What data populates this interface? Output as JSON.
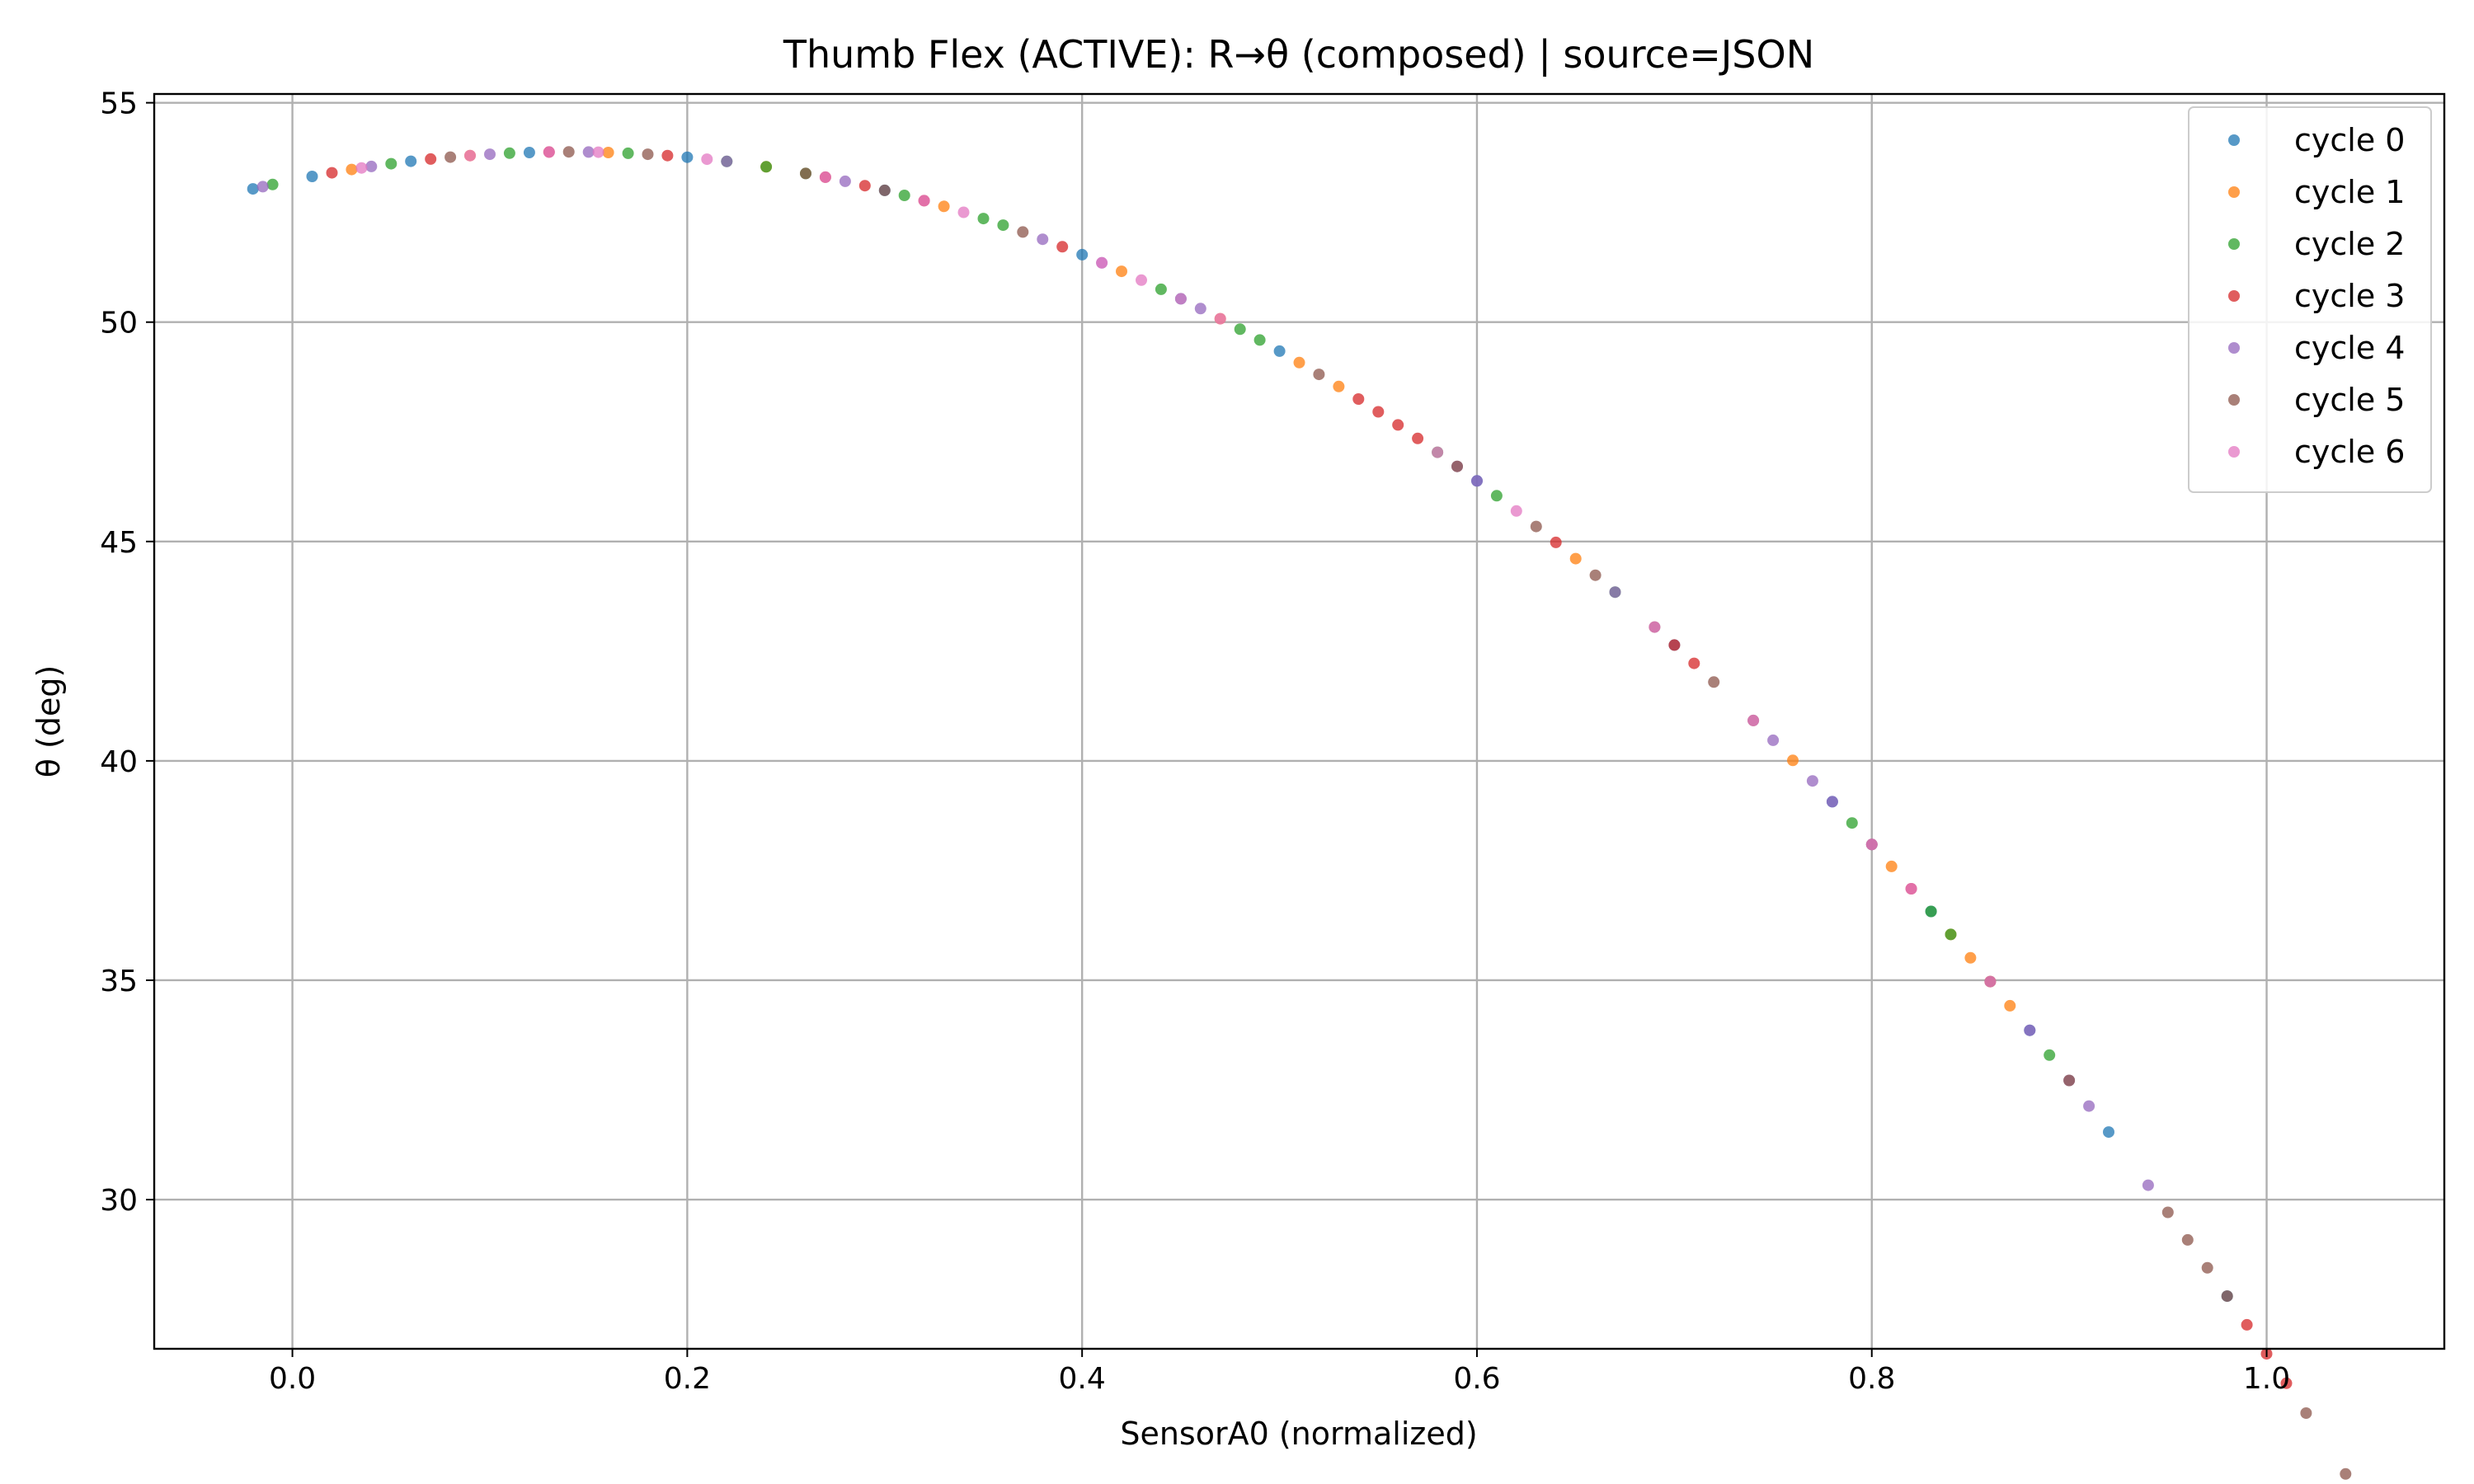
{
  "chart_data": {
    "type": "scatter",
    "title": "Thumb Flex (ACTIVE): R→θ (composed) | source=JSON",
    "xlabel": "SensorA0 (normalized)",
    "ylabel": "θ (deg)",
    "xlim": [
      -0.07,
      1.09
    ],
    "ylim": [
      26.6,
      55.2
    ],
    "xticks": [
      0.0,
      0.2,
      0.4,
      0.6,
      0.8,
      1.0
    ],
    "xtick_labels": [
      "0.0",
      "0.2",
      "0.4",
      "0.6",
      "0.8",
      "1.0"
    ],
    "yticks": [
      30,
      35,
      40,
      45,
      50,
      55
    ],
    "ytick_labels": [
      "30",
      "35",
      "40",
      "45",
      "50",
      "55"
    ],
    "grid": true,
    "legend_position": "top-right",
    "series": [
      {
        "name": "cycle 0",
        "color": "#1f77b4",
        "x": [
          -0.02,
          0.01,
          0.06,
          0.12,
          0.2,
          0.3,
          0.4,
          0.45,
          0.5,
          0.6,
          0.7,
          0.78,
          0.83,
          0.88,
          0.92,
          0.98
        ]
      },
      {
        "name": "cycle 1",
        "color": "#ff7f0e",
        "x": [
          0.03,
          0.09,
          0.16,
          0.24,
          0.33,
          0.42,
          0.47,
          0.51,
          0.53,
          0.65,
          0.76,
          0.81,
          0.84,
          0.85,
          0.86,
          0.87
        ]
      },
      {
        "name": "cycle 2",
        "color": "#2ca02c",
        "x": [
          -0.01,
          0.05,
          0.11,
          0.17,
          0.22,
          0.24,
          0.26,
          0.31,
          0.35,
          0.36,
          0.44,
          0.48,
          0.49,
          0.58,
          0.61,
          0.67,
          0.79,
          0.83,
          0.84,
          0.89
        ]
      },
      {
        "name": "cycle 3",
        "color": "#d62728",
        "x": [
          0.02,
          0.07,
          0.13,
          0.19,
          0.27,
          0.29,
          0.32,
          0.39,
          0.54,
          0.55,
          0.56,
          0.57,
          0.64,
          0.7,
          0.71,
          0.82,
          0.99,
          1.0,
          1.01
        ]
      },
      {
        "name": "cycle 4",
        "color": "#9467bd",
        "x": [
          -0.015,
          0.04,
          0.1,
          0.15,
          0.22,
          0.28,
          0.38,
          0.41,
          0.46,
          0.59,
          0.6,
          0.67,
          0.75,
          0.77,
          0.78,
          0.8,
          0.88,
          0.9,
          0.91,
          0.94
        ]
      },
      {
        "name": "cycle 5",
        "color": "#8c564b",
        "x": [
          0.08,
          0.14,
          0.18,
          0.26,
          0.3,
          0.37,
          0.52,
          0.59,
          0.63,
          0.66,
          0.69,
          0.72,
          0.74,
          0.8,
          0.86,
          0.9,
          0.95,
          0.96,
          0.97,
          0.98,
          1.02,
          1.04
        ]
      },
      {
        "name": "cycle 6",
        "color": "#e377c2",
        "x": [
          0.035,
          0.09,
          0.13,
          0.155,
          0.21,
          0.27,
          0.32,
          0.34,
          0.41,
          0.43,
          0.45,
          0.47,
          0.58,
          0.62,
          0.69,
          0.74,
          0.8,
          0.82,
          0.86
        ]
      }
    ],
    "curve": {
      "peak_x": 0.14,
      "peak_y": 53.88,
      "a": 33.6,
      "b": 4.0
    }
  }
}
